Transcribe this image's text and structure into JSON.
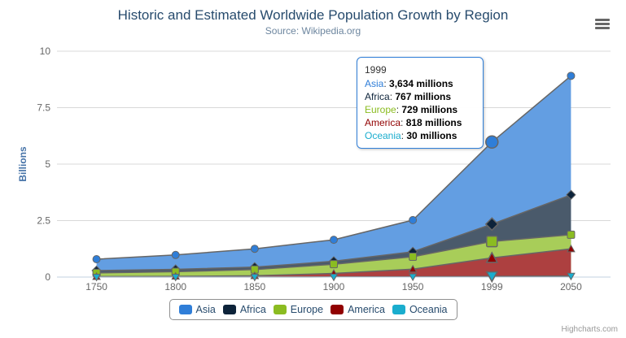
{
  "chart_data": {
    "type": "area",
    "stacking": "normal",
    "title": "Historic and Estimated Worldwide Population Growth by Region",
    "subtitle": "Source: Wikipedia.org",
    "categories": [
      "1750",
      "1800",
      "1850",
      "1900",
      "1950",
      "1999",
      "2050"
    ],
    "series": [
      {
        "name": "Asia",
        "color": "#2f7ed8",
        "marker": "circle",
        "values": [
          502,
          635,
          809,
          947,
          1402,
          3634,
          5268
        ]
      },
      {
        "name": "Africa",
        "color": "#0d233a",
        "marker": "diamond",
        "values": [
          106,
          107,
          111,
          133,
          221,
          767,
          1766
        ]
      },
      {
        "name": "Europe",
        "color": "#8bbc21",
        "marker": "square",
        "values": [
          163,
          203,
          276,
          408,
          547,
          729,
          628
        ]
      },
      {
        "name": "America",
        "color": "#910000",
        "marker": "triangle",
        "values": [
          18,
          31,
          54,
          156,
          339,
          818,
          1201
        ]
      },
      {
        "name": "Oceania",
        "color": "#1aadce",
        "marker": "triangle-down",
        "values": [
          2,
          2,
          2,
          6,
          13,
          30,
          46
        ]
      }
    ],
    "stack_order_bottom_to_top": [
      "Oceania",
      "America",
      "Europe",
      "Africa",
      "Asia"
    ],
    "unit": "millions",
    "xlabel": "",
    "ylabel": "Billions",
    "ylim": [
      0,
      10
    ],
    "yticks": [
      "0",
      "2.5",
      "5",
      "7.5",
      "10"
    ],
    "grid": true,
    "legend_position": "bottom",
    "hovered_category": "1999"
  },
  "tooltip": {
    "category": "1999",
    "rows": [
      {
        "label": "Asia",
        "value": "3,634 millions",
        "color": "#2f7ed8"
      },
      {
        "label": "Africa",
        "value": "767 millions",
        "color": "#0d233a"
      },
      {
        "label": "Europe",
        "value": "729 millions",
        "color": "#8bbc21"
      },
      {
        "label": "America",
        "value": "818 millions",
        "color": "#910000"
      },
      {
        "label": "Oceania",
        "value": "30 millions",
        "color": "#1aadce"
      }
    ]
  },
  "colors": {
    "title_text": "#274b6d",
    "subtitle_text": "#6d869f",
    "axis_label": "#666666",
    "y_axis_title": "#4572a7",
    "axis_line": "#c0d0e0",
    "gridline": "#d8d8d8",
    "series_outline": "#666666",
    "tooltip_border": "#2f7ed8",
    "legend_border": "#909090",
    "legend_text": "#274b6d",
    "credit_text": "#999999"
  },
  "credit": "Highcharts.com",
  "menu_icon": "hamburger-icon"
}
